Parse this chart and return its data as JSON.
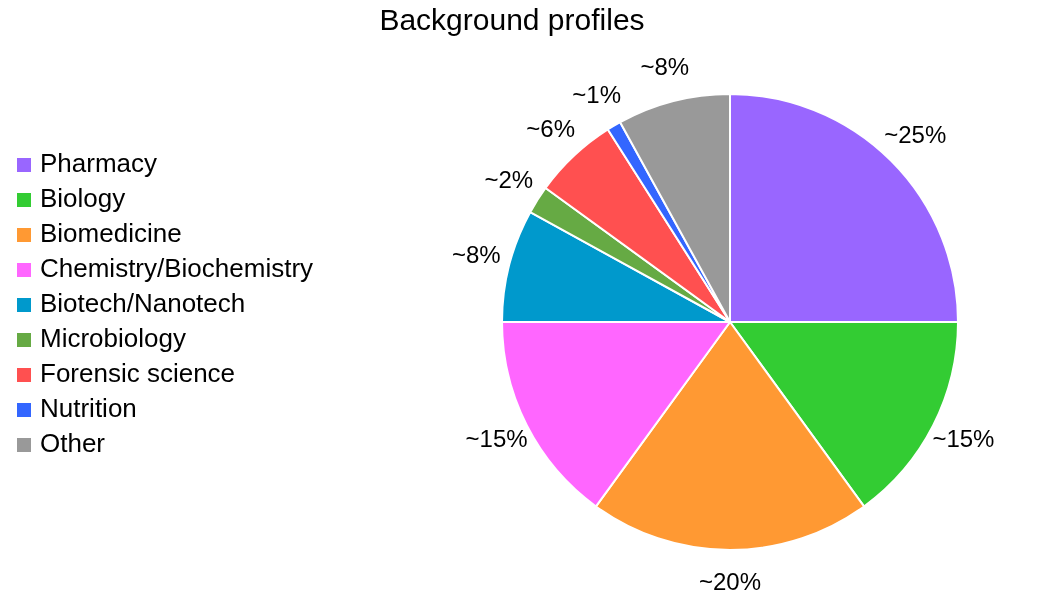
{
  "chart_data": {
    "type": "pie",
    "title": "Background profiles",
    "categories": [
      "Pharmacy",
      "Biology",
      "Biomedicine",
      "Chemistry/Biochemistry",
      "Biotech/Nanotech",
      "Microbiology",
      "Forensic science",
      "Nutrition",
      "Other"
    ],
    "values": [
      25,
      15,
      20,
      15,
      8,
      2,
      6,
      1,
      8
    ],
    "colors": [
      "#9966ff",
      "#33cc33",
      "#ff9933",
      "#ff66ff",
      "#0099cc",
      "#66aa44",
      "#ff5050",
      "#3366ff",
      "#999999"
    ],
    "value_labels": [
      "~25%",
      "~15%",
      "~20%",
      "~15%",
      "~8%",
      "~2%",
      "~6%",
      "~1%",
      "~8%"
    ],
    "legend": "left"
  }
}
